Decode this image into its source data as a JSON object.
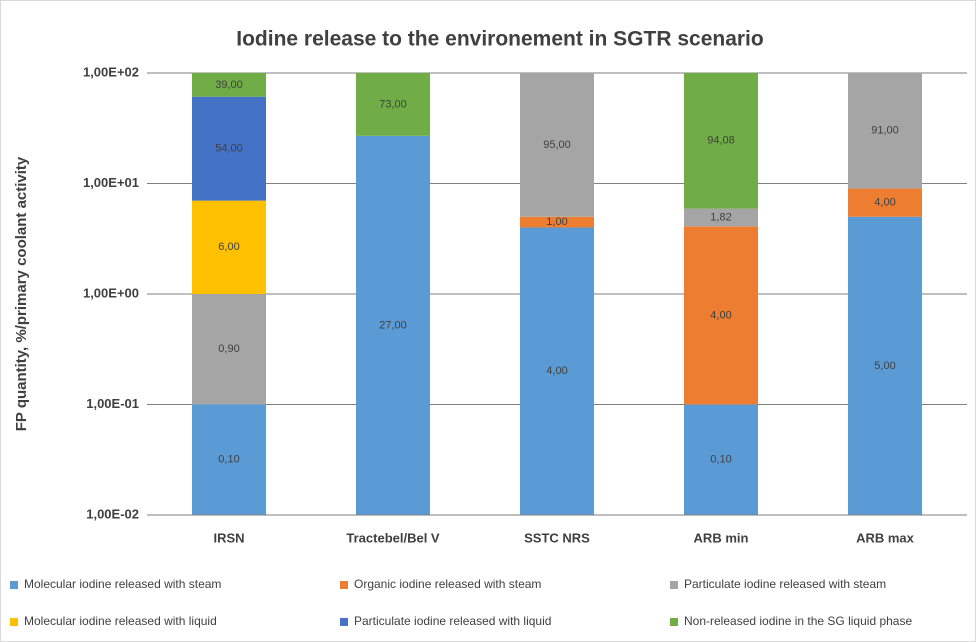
{
  "chart_data": {
    "type": "bar",
    "stacked": true,
    "log_scale": true,
    "grid": true,
    "title": "Iodine release to the environement in SGTR scenario",
    "y_label": "FP quantity, %/primary coolant activity",
    "categories": [
      "IRSN",
      "Tractebel/Bel V",
      "SSTC NRS",
      "ARB min",
      "ARB max"
    ],
    "ylim": [
      0.01,
      100
    ],
    "yticks": [
      {
        "value": 0.01,
        "label": "1,00E-02"
      },
      {
        "value": 0.1,
        "label": "1,00E-01"
      },
      {
        "value": 1,
        "label": "1,00E+00"
      },
      {
        "value": 10,
        "label": "1,00E+01"
      },
      {
        "value": 100,
        "label": "1,00E+02"
      }
    ],
    "series": [
      {
        "name": "Molecular iodine released with steam",
        "color": "#5b9bd5",
        "values": [
          0.1,
          27,
          4,
          0.1,
          5
        ],
        "value_labels": [
          "0,10",
          "27,00",
          "4,00",
          "0,10",
          "5,00"
        ]
      },
      {
        "name": "Organic iodine released with steam",
        "color": "#ed7d31",
        "values": [
          null,
          null,
          1,
          4,
          4
        ],
        "value_labels": [
          null,
          null,
          "1,00",
          "4,00",
          "4,00"
        ]
      },
      {
        "name": "Particulate iodine released with steam",
        "color": "#a5a5a5",
        "values": [
          0.9,
          null,
          95,
          1.82,
          91
        ],
        "value_labels": [
          "0,90",
          null,
          "95,00",
          "1,82",
          "91,00"
        ]
      },
      {
        "name": "Molecular iodine released with liquid",
        "color": "#ffc000",
        "values": [
          6,
          null,
          null,
          null,
          null
        ],
        "value_labels": [
          "6,00",
          null,
          null,
          null,
          null
        ]
      },
      {
        "name": "Particulate iodine released with liquid",
        "color": "#4472c4",
        "values": [
          54,
          null,
          null,
          null,
          null
        ],
        "value_labels": [
          "54,00",
          null,
          null,
          null,
          null
        ]
      },
      {
        "name": "Non-released iodine in the SG liquid phase",
        "color": "#70ad47",
        "values": [
          39,
          73,
          null,
          94.08,
          null
        ],
        "value_labels": [
          "39,00",
          "73,00",
          null,
          "94,08",
          null
        ]
      }
    ]
  }
}
